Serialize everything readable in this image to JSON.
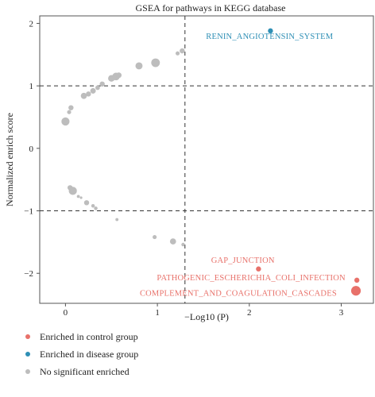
{
  "chart_data": {
    "type": "scatter",
    "title": "GSEA for pathways in KEGG database",
    "xlabel": "−Log10 (P)",
    "ylabel": "Normalized enrich score",
    "xlim": [
      -0.28,
      3.35
    ],
    "ylim": [
      -2.48,
      2.12
    ],
    "x_ticks": [
      0,
      1,
      2,
      3
    ],
    "y_ticks": [
      -2,
      -1,
      0,
      1,
      2
    ],
    "reference_lines": {
      "horizontal": [
        1,
        -1
      ],
      "vertical": [
        1.3
      ],
      "style": "dashed"
    },
    "grid": false,
    "legend_position": "bottom-left",
    "colors": {
      "control": "#e8716a",
      "disease": "#2e8fb5",
      "none": "#bdbdbd"
    },
    "series": [
      {
        "name": "Enriched in control group",
        "group": "control",
        "points": [
          {
            "x": 2.1,
            "y": -1.93,
            "size": 1.0,
            "label": "GAP_JUNCTION"
          },
          {
            "x": 3.17,
            "y": -2.11,
            "size": 1.0,
            "label": "PATHOGENIC_ESCHERICHIA_COLI_INFECTION"
          },
          {
            "x": 3.16,
            "y": -2.28,
            "size": 1.9,
            "label": "COMPLEMENT_AND_COAGULATION_CASCADES"
          }
        ]
      },
      {
        "name": "Enriched in disease group",
        "group": "disease",
        "points": [
          {
            "x": 2.23,
            "y": 1.88,
            "size": 1.0,
            "label": "RENIN_ANGIOTENSIN_SYSTEM"
          }
        ]
      },
      {
        "name": "No significant enriched",
        "group": "none",
        "points": [
          {
            "x": 0.0,
            "y": 0.43,
            "size": 1.6
          },
          {
            "x": 0.06,
            "y": 0.65,
            "size": 1.0
          },
          {
            "x": 0.04,
            "y": 0.58,
            "size": 0.8
          },
          {
            "x": 0.2,
            "y": 0.84,
            "size": 1.2
          },
          {
            "x": 0.25,
            "y": 0.87,
            "size": 1.0
          },
          {
            "x": 0.3,
            "y": 0.92,
            "size": 1.1
          },
          {
            "x": 0.35,
            "y": 0.97,
            "size": 0.9
          },
          {
            "x": 0.4,
            "y": 1.03,
            "size": 1.0
          },
          {
            "x": 0.5,
            "y": 1.12,
            "size": 1.3
          },
          {
            "x": 0.55,
            "y": 1.15,
            "size": 1.5
          },
          {
            "x": 0.58,
            "y": 1.17,
            "size": 1.1
          },
          {
            "x": 0.8,
            "y": 1.32,
            "size": 1.4
          },
          {
            "x": 0.98,
            "y": 1.37,
            "size": 1.7
          },
          {
            "x": 1.22,
            "y": 1.52,
            "size": 0.8
          },
          {
            "x": 1.27,
            "y": 1.56,
            "size": 1.0
          },
          {
            "x": 0.05,
            "y": -0.63,
            "size": 1.0
          },
          {
            "x": 0.08,
            "y": -0.68,
            "size": 1.6
          },
          {
            "x": 0.14,
            "y": -0.77,
            "size": 0.6
          },
          {
            "x": 0.17,
            "y": -0.79,
            "size": 0.5
          },
          {
            "x": 0.23,
            "y": -0.87,
            "size": 1.0
          },
          {
            "x": 0.3,
            "y": -0.92,
            "size": 0.7
          },
          {
            "x": 0.33,
            "y": -0.96,
            "size": 0.7
          },
          {
            "x": 0.56,
            "y": -1.14,
            "size": 0.6
          },
          {
            "x": 0.97,
            "y": -1.42,
            "size": 0.8
          },
          {
            "x": 1.17,
            "y": -1.49,
            "size": 1.2
          },
          {
            "x": 1.28,
            "y": -1.54,
            "size": 0.7
          }
        ]
      }
    ],
    "annotations": [
      {
        "text": "RENIN_ANGIOTENSIN_SYSTEM",
        "group": "disease",
        "x": 2.22,
        "y": 1.75,
        "anchor": "middle"
      },
      {
        "text": "GAP_JUNCTION",
        "group": "control",
        "x": 1.93,
        "y": -1.83,
        "anchor": "middle"
      },
      {
        "text": "PATHOGENIC_ESCHERICHIA_COLI_INFECTION",
        "group": "control",
        "x": 2.02,
        "y": -2.11,
        "anchor": "middle"
      },
      {
        "text": "COMPLEMENT_AND_COAGULATION_CASCADES",
        "group": "control",
        "x": 1.88,
        "y": -2.36,
        "anchor": "middle"
      }
    ]
  }
}
